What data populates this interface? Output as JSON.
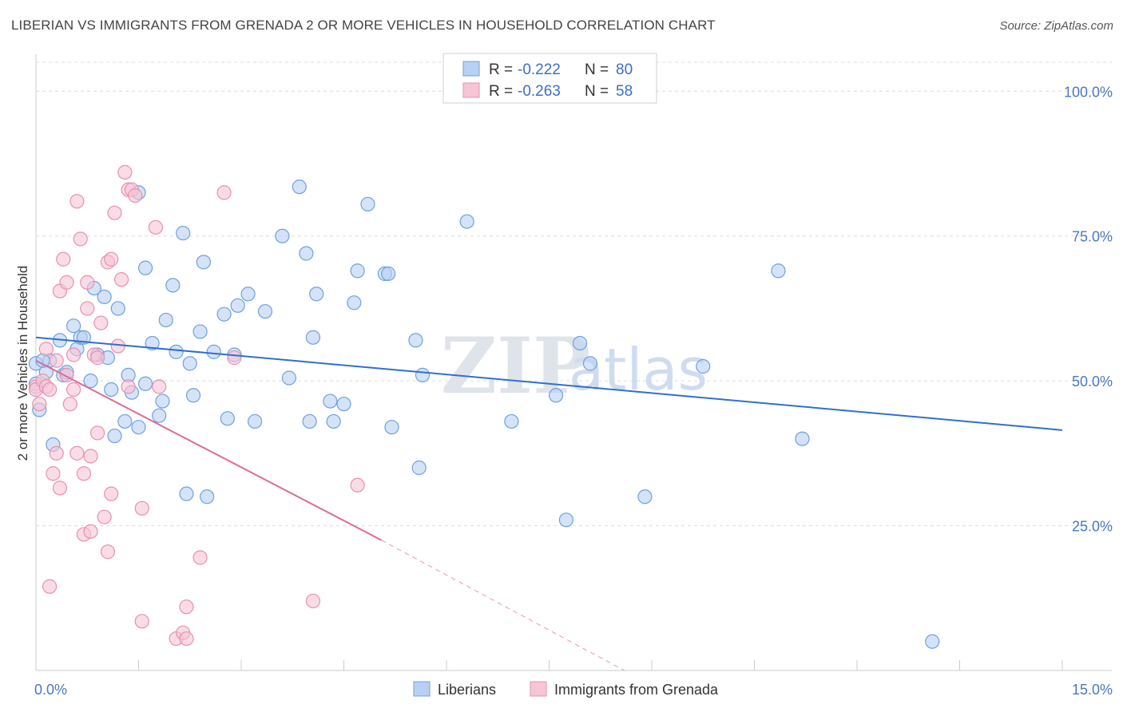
{
  "title": "LIBERIAN VS IMMIGRANTS FROM GRENADA 2 OR MORE VEHICLES IN HOUSEHOLD CORRELATION CHART",
  "source": "Source: ZipAtlas.com",
  "watermark": {
    "zip": "ZIP",
    "atlas": "atlas"
  },
  "chart_data": {
    "type": "scatter",
    "title": "LIBERIAN VS IMMIGRANTS FROM GRENADA 2 OR MORE VEHICLES IN HOUSEHOLD CORRELATION CHART",
    "xlabel": "",
    "ylabel": "2 or more Vehicles in Household",
    "xlim": [
      0,
      15
    ],
    "ylim": [
      0,
      105
    ],
    "x_tick_labels": [
      "0.0%",
      "15.0%"
    ],
    "y_ticks": [
      25,
      50,
      75,
      100
    ],
    "y_tick_labels": [
      "25.0%",
      "50.0%",
      "75.0%",
      "100.0%"
    ],
    "grid": "horizontal dashed",
    "legend_placement": "top-center",
    "stats": [
      {
        "r_label": "R = ",
        "r": "-0.222",
        "n_label": "N = ",
        "n": "80"
      },
      {
        "r_label": "R = ",
        "r": "-0.263",
        "n_label": "N = ",
        "n": "58"
      }
    ],
    "series": [
      {
        "name": "Liberians",
        "color": "#6fa0e0",
        "fill": "#b8d0f2",
        "trend": {
          "x0": 0.0,
          "y0": 57.5,
          "x1": 15.0,
          "y1": 41.5,
          "color": "#2f6fcf"
        },
        "points": [
          [
            0.0,
            53.0
          ],
          [
            0.0,
            49.5
          ],
          [
            0.05,
            45.0
          ],
          [
            0.15,
            51.5
          ],
          [
            0.2,
            53.5
          ],
          [
            0.25,
            39.0
          ],
          [
            0.35,
            57.0
          ],
          [
            0.4,
            51.0
          ],
          [
            0.45,
            51.5
          ],
          [
            0.55,
            59.5
          ],
          [
            0.6,
            55.5
          ],
          [
            0.65,
            57.5
          ],
          [
            0.7,
            57.5
          ],
          [
            0.8,
            50.0
          ],
          [
            0.85,
            66.0
          ],
          [
            0.9,
            54.5
          ],
          [
            1.0,
            64.5
          ],
          [
            1.05,
            54.0
          ],
          [
            1.1,
            48.5
          ],
          [
            1.15,
            40.5
          ],
          [
            1.2,
            62.5
          ],
          [
            1.3,
            43.0
          ],
          [
            1.35,
            51.0
          ],
          [
            1.4,
            48.0
          ],
          [
            1.5,
            42.0
          ],
          [
            1.5,
            82.5
          ],
          [
            1.6,
            69.5
          ],
          [
            1.6,
            49.5
          ],
          [
            1.7,
            56.5
          ],
          [
            1.8,
            44.0
          ],
          [
            1.85,
            46.5
          ],
          [
            1.9,
            60.5
          ],
          [
            2.0,
            66.5
          ],
          [
            2.05,
            55.0
          ],
          [
            2.15,
            75.5
          ],
          [
            2.2,
            30.5
          ],
          [
            2.25,
            53.0
          ],
          [
            2.3,
            47.5
          ],
          [
            2.4,
            58.5
          ],
          [
            2.45,
            70.5
          ],
          [
            2.5,
            30.0
          ],
          [
            2.6,
            55.0
          ],
          [
            2.75,
            61.5
          ],
          [
            2.8,
            43.5
          ],
          [
            2.9,
            54.5
          ],
          [
            2.95,
            63.0
          ],
          [
            3.1,
            65.0
          ],
          [
            3.2,
            43.0
          ],
          [
            3.35,
            62.0
          ],
          [
            3.6,
            75.0
          ],
          [
            3.7,
            50.5
          ],
          [
            3.85,
            83.5
          ],
          [
            3.95,
            72.0
          ],
          [
            4.0,
            43.0
          ],
          [
            4.05,
            57.5
          ],
          [
            4.1,
            65.0
          ],
          [
            4.3,
            46.5
          ],
          [
            4.35,
            43.0
          ],
          [
            4.5,
            46.0
          ],
          [
            4.65,
            63.5
          ],
          [
            4.7,
            69.0
          ],
          [
            4.85,
            80.5
          ],
          [
            5.1,
            68.5
          ],
          [
            5.15,
            68.5
          ],
          [
            5.2,
            42.0
          ],
          [
            5.55,
            57.0
          ],
          [
            5.6,
            35.0
          ],
          [
            5.65,
            51.0
          ],
          [
            6.3,
            77.5
          ],
          [
            6.95,
            43.0
          ],
          [
            7.6,
            47.5
          ],
          [
            7.75,
            26.0
          ],
          [
            7.95,
            56.5
          ],
          [
            8.1,
            53.0
          ],
          [
            8.9,
            30.0
          ],
          [
            9.75,
            52.5
          ],
          [
            10.85,
            69.0
          ],
          [
            11.2,
            40.0
          ],
          [
            13.1,
            5.0
          ],
          [
            0.1,
            53.5
          ]
        ]
      },
      {
        "name": "Immigrants from Grenada",
        "color": "#e890b0",
        "fill": "#f6c5d6",
        "trend": {
          "x0": 0.0,
          "y0": 53.5,
          "x1": 5.05,
          "y1": 22.5,
          "color": "#e06a95"
        },
        "trend_dashed": {
          "x0": 5.05,
          "y0": 22.5,
          "x1": 8.6,
          "y1": 0.0
        },
        "points": [
          [
            0.0,
            49.0
          ],
          [
            0.0,
            48.5
          ],
          [
            0.05,
            46.0
          ],
          [
            0.1,
            50.0
          ],
          [
            0.15,
            49.0
          ],
          [
            0.2,
            48.5
          ],
          [
            0.2,
            14.5
          ],
          [
            0.25,
            34.0
          ],
          [
            0.3,
            37.5
          ],
          [
            0.35,
            31.5
          ],
          [
            0.35,
            65.5
          ],
          [
            0.4,
            71.0
          ],
          [
            0.45,
            51.0
          ],
          [
            0.45,
            67.0
          ],
          [
            0.5,
            46.0
          ],
          [
            0.55,
            54.5
          ],
          [
            0.6,
            81.0
          ],
          [
            0.6,
            37.5
          ],
          [
            0.65,
            74.5
          ],
          [
            0.7,
            23.5
          ],
          [
            0.7,
            34.0
          ],
          [
            0.75,
            62.5
          ],
          [
            0.75,
            67.0
          ],
          [
            0.8,
            24.0
          ],
          [
            0.8,
            37.0
          ],
          [
            0.85,
            54.5
          ],
          [
            0.9,
            41.0
          ],
          [
            0.95,
            60.0
          ],
          [
            1.0,
            26.5
          ],
          [
            1.05,
            20.5
          ],
          [
            1.05,
            70.5
          ],
          [
            1.1,
            30.5
          ],
          [
            1.1,
            71.0
          ],
          [
            1.15,
            79.0
          ],
          [
            1.2,
            56.0
          ],
          [
            1.25,
            67.5
          ],
          [
            1.3,
            86.0
          ],
          [
            1.35,
            83.0
          ],
          [
            1.35,
            49.0
          ],
          [
            1.4,
            83.0
          ],
          [
            1.45,
            82.0
          ],
          [
            1.55,
            28.0
          ],
          [
            1.55,
            8.5
          ],
          [
            1.75,
            76.5
          ],
          [
            1.8,
            49.0
          ],
          [
            2.05,
            5.5
          ],
          [
            2.15,
            6.5
          ],
          [
            2.2,
            11.0
          ],
          [
            2.2,
            5.5
          ],
          [
            2.4,
            19.5
          ],
          [
            2.75,
            82.5
          ],
          [
            2.9,
            54.0
          ],
          [
            4.05,
            12.0
          ],
          [
            4.7,
            32.0
          ],
          [
            0.15,
            55.5
          ],
          [
            0.3,
            53.5
          ],
          [
            0.55,
            48.5
          ],
          [
            0.9,
            54.0
          ]
        ]
      }
    ]
  }
}
